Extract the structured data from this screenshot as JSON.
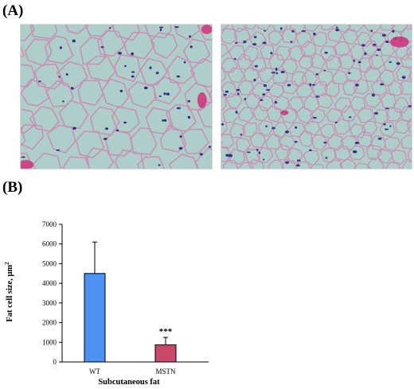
{
  "panels": {
    "a_label": "(A)",
    "b_label": "(B)"
  },
  "micrographs": {
    "tissue_color": "#aecfc9",
    "membrane_color": "#c98fb5",
    "nucleus_color": "#3a2f8a",
    "accent_color": "#d0307a"
  },
  "chart_data": {
    "type": "bar",
    "categories": [
      "WT",
      "MSTN"
    ],
    "values": [
      4500,
      870
    ],
    "errors": [
      1600,
      380
    ],
    "colors": [
      "#4f91f2",
      "#c94869"
    ],
    "ylabel": "Fat cell size, μm",
    "ylabel_superscript": "2",
    "xlabel": "Subcutaneous fat",
    "ylim": [
      0,
      7000
    ],
    "yticks": [
      0,
      1000,
      2000,
      3000,
      4000,
      5000,
      6000,
      7000
    ],
    "significance": [
      {
        "category": "MSTN",
        "label": "***"
      }
    ],
    "grid": false
  }
}
